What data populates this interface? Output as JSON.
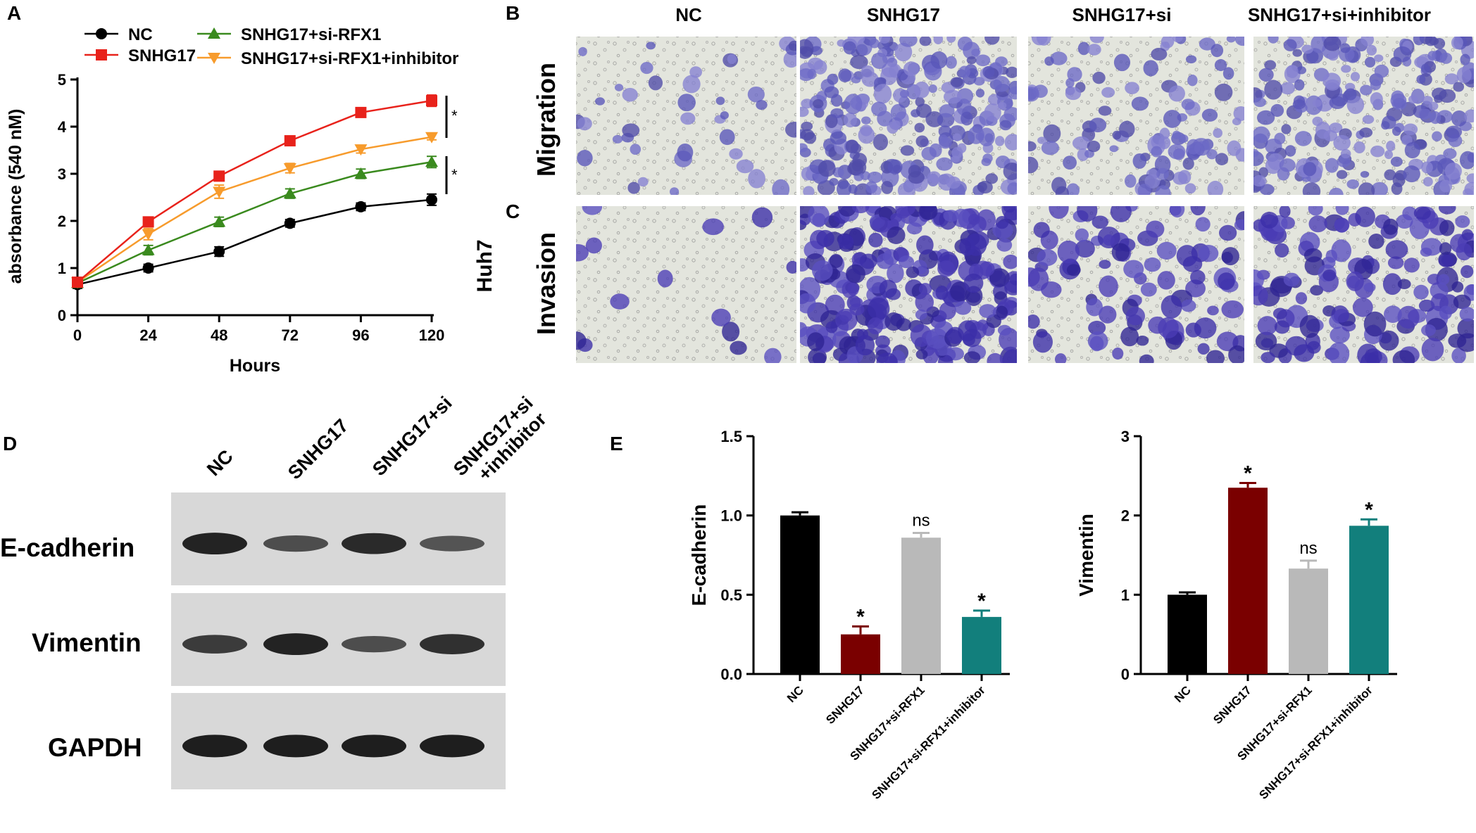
{
  "panel_labels": {
    "A": "A",
    "B": "B",
    "C": "C",
    "D": "D",
    "E": "E"
  },
  "panel_a": {
    "ylabel": "absorbance (540 nM)",
    "xlabel": "Hours",
    "sig1": "*",
    "sig2": "*"
  },
  "panel_b": {
    "columns": [
      "NC",
      "SNHG17",
      "SNHG17+si",
      "SNHG17+si+inhibitor"
    ],
    "row_migration": "Migration",
    "row_invasion": "Invasion",
    "cell_line": "Huh7"
  },
  "panel_d": {
    "lanes": [
      "NC",
      "SNHG17",
      "SNHG17+si"
    ],
    "lane4_line1": "SNHG17+si",
    "lane4_line2": "+inhibitor",
    "proteins": [
      "E-cadherin",
      "Vimentin",
      "GAPDH"
    ],
    "band_intensity": [
      [
        0.95,
        0.6,
        0.9,
        0.55
      ],
      [
        0.75,
        0.95,
        0.6,
        0.85
      ],
      [
        1,
        1,
        1,
        1
      ]
    ]
  },
  "chart_data": [
    {
      "type": "line",
      "xlabel": "Hours",
      "ylabel": "absorbance (540 nM)",
      "x": [
        0,
        24,
        48,
        72,
        96,
        120
      ],
      "xlim": [
        0,
        120
      ],
      "ylim": [
        0,
        5
      ],
      "xticks": [
        "0",
        "24",
        "48",
        "72",
        "96",
        "120"
      ],
      "yticks": [
        "0",
        "1",
        "2",
        "3",
        "4",
        "5"
      ],
      "legend_position": "top",
      "series": [
        {
          "name": "NC",
          "values": [
            0.65,
            1.0,
            1.35,
            1.95,
            2.3,
            2.45
          ],
          "errors": [
            0.08,
            0.08,
            0.1,
            0.08,
            0.08,
            0.12
          ],
          "color": "#000000",
          "marker": "circle"
        },
        {
          "name": "SNHG17",
          "values": [
            0.7,
            1.98,
            2.95,
            3.7,
            4.3,
            4.55
          ],
          "errors": [
            0.08,
            0.1,
            0.1,
            0.1,
            0.08,
            0.12
          ],
          "color": "#e8221b",
          "marker": "square"
        },
        {
          "name": "SNHG17+si-RFX1",
          "values": [
            0.68,
            1.38,
            1.98,
            2.58,
            3.0,
            3.25
          ],
          "errors": [
            0.08,
            0.1,
            0.1,
            0.1,
            0.1,
            0.12
          ],
          "color": "#3a8a1e",
          "marker": "triangle-up"
        },
        {
          "name": "SNHG17+si-RFX1+inhibitor",
          "values": [
            0.7,
            1.72,
            2.62,
            3.12,
            3.52,
            3.78
          ],
          "errors": [
            0.08,
            0.12,
            0.14,
            0.1,
            0.08,
            0.06
          ],
          "color": "#f79b2c",
          "marker": "triangle-down"
        }
      ]
    },
    {
      "type": "bar",
      "ylabel": "E-cadherin",
      "categories": [
        "NC",
        "SNHG17",
        "SNHG17+si-RFX1",
        "SNHG17+si-RFX1+inhibitor"
      ],
      "values": [
        1.0,
        0.25,
        0.86,
        0.36
      ],
      "errors": [
        0.02,
        0.05,
        0.03,
        0.04
      ],
      "annotations": [
        "",
        "*",
        "ns",
        "*"
      ],
      "colors": [
        "#000000",
        "#7a0000",
        "#b9b9b9",
        "#127f7c"
      ],
      "ylim": [
        0,
        1.5
      ],
      "yticks": [
        "0.0",
        "0.5",
        "1.0",
        "1.5"
      ]
    },
    {
      "type": "bar",
      "ylabel": "Vimentin",
      "categories": [
        "NC",
        "SNHG17",
        "SNHG17+si-RFX1",
        "SNHG17+si-RFX1+inhibitor"
      ],
      "values": [
        1.0,
        2.35,
        1.33,
        1.87
      ],
      "errors": [
        0.03,
        0.06,
        0.1,
        0.08
      ],
      "annotations": [
        "",
        "*",
        "ns",
        "*"
      ],
      "colors": [
        "#000000",
        "#7a0000",
        "#b9b9b9",
        "#127f7c"
      ],
      "ylim": [
        0,
        3
      ],
      "yticks": [
        "0",
        "1",
        "2",
        "3"
      ]
    }
  ]
}
